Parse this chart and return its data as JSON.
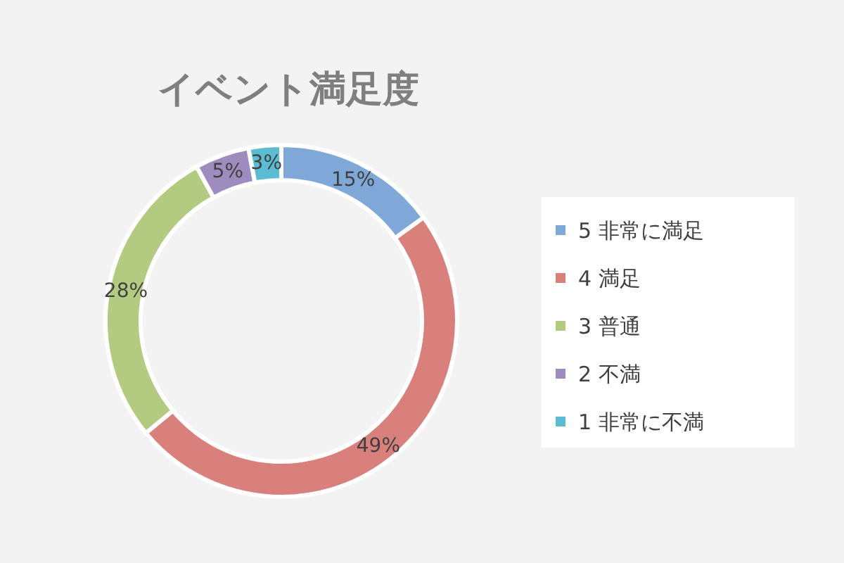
{
  "chart_data": {
    "type": "donut",
    "title": "イベント満足度",
    "categories": [
      "5 非常に満足",
      "4 満足",
      "3 普通",
      "2 不満",
      "1 非常に不満"
    ],
    "values": [
      15,
      49,
      28,
      5,
      3
    ],
    "colors": [
      "#7fa8d8",
      "#d9807d",
      "#b3cb80",
      "#9f8cbf",
      "#5bbcd4"
    ],
    "value_labels": [
      "15%",
      "49%",
      "28%",
      "5%",
      "3%"
    ],
    "legend": "right"
  }
}
